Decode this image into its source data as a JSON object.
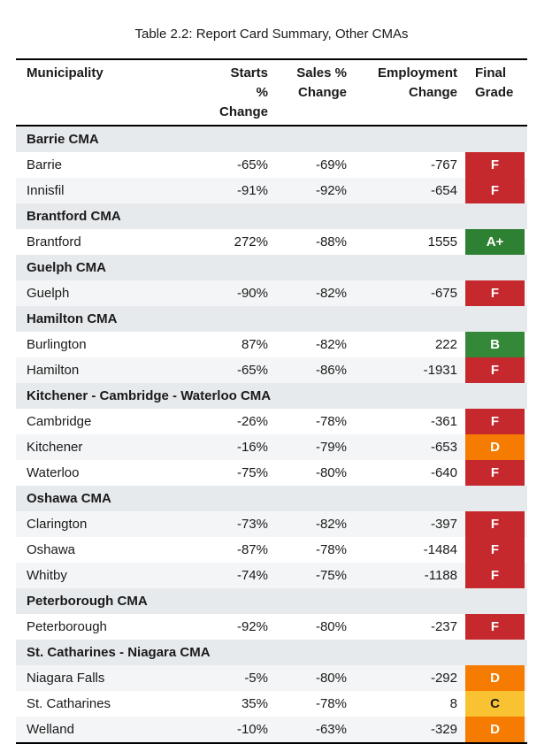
{
  "title": "Table 2.2: Report Card Summary, Other CMAs",
  "header": {
    "municipality": [
      "Municipality",
      ""
    ],
    "starts": [
      "Starts %",
      "Change"
    ],
    "sales": [
      "Sales %",
      "Change"
    ],
    "employment": [
      "Employment",
      "Change"
    ],
    "grade": [
      "Final",
      "Grade"
    ]
  },
  "colors": {
    "row_even": "#ffffff",
    "row_odd": "#f4f5f6",
    "section_bg": "#e7eaed",
    "text": "#1a1a1a",
    "border": "#000000"
  },
  "grade_styles": {
    "A+": {
      "bg": "#2e8033",
      "fg": "#ffffff"
    },
    "B": {
      "bg": "#348939",
      "fg": "#ffffff"
    },
    "C": {
      "bg": "#f9c232",
      "fg": "#1a1a1a"
    },
    "D": {
      "bg": "#f57c00",
      "fg": "#ffffff"
    },
    "F": {
      "bg": "#c5292d",
      "fg": "#ffffff"
    }
  },
  "sections": [
    {
      "name": "Barrie CMA",
      "rows": [
        {
          "municipality": "Barrie",
          "starts": "-65%",
          "sales": "-69%",
          "employment": "-767",
          "grade": "F"
        },
        {
          "municipality": "Innisfil",
          "starts": "-91%",
          "sales": "-92%",
          "employment": "-654",
          "grade": "F"
        }
      ]
    },
    {
      "name": "Brantford CMA",
      "rows": [
        {
          "municipality": "Brantford",
          "starts": "272%",
          "sales": "-88%",
          "employment": "1555",
          "grade": "A+"
        }
      ]
    },
    {
      "name": "Guelph CMA",
      "rows": [
        {
          "municipality": "Guelph",
          "starts": "-90%",
          "sales": "-82%",
          "employment": "-675",
          "grade": "F"
        }
      ]
    },
    {
      "name": "Hamilton CMA",
      "rows": [
        {
          "municipality": "Burlington",
          "starts": "87%",
          "sales": "-82%",
          "employment": "222",
          "grade": "B"
        },
        {
          "municipality": "Hamilton",
          "starts": "-65%",
          "sales": "-86%",
          "employment": "-1931",
          "grade": "F"
        }
      ]
    },
    {
      "name": "Kitchener - Cambridge - Waterloo CMA",
      "rows": [
        {
          "municipality": "Cambridge",
          "starts": "-26%",
          "sales": "-78%",
          "employment": "-361",
          "grade": "F"
        },
        {
          "municipality": "Kitchener",
          "starts": "-16%",
          "sales": "-79%",
          "employment": "-653",
          "grade": "D"
        },
        {
          "municipality": "Waterloo",
          "starts": "-75%",
          "sales": "-80%",
          "employment": "-640",
          "grade": "F"
        }
      ]
    },
    {
      "name": "Oshawa CMA",
      "rows": [
        {
          "municipality": "Clarington",
          "starts": "-73%",
          "sales": "-82%",
          "employment": "-397",
          "grade": "F"
        },
        {
          "municipality": "Oshawa",
          "starts": "-87%",
          "sales": "-78%",
          "employment": "-1484",
          "grade": "F"
        },
        {
          "municipality": "Whitby",
          "starts": "-74%",
          "sales": "-75%",
          "employment": "-1188",
          "grade": "F"
        }
      ]
    },
    {
      "name": "Peterborough CMA",
      "rows": [
        {
          "municipality": "Peterborough",
          "starts": "-92%",
          "sales": "-80%",
          "employment": "-237",
          "grade": "F"
        }
      ]
    },
    {
      "name": "St. Catharines - Niagara CMA",
      "rows": [
        {
          "municipality": "Niagara Falls",
          "starts": "-5%",
          "sales": "-80%",
          "employment": "-292",
          "grade": "D"
        },
        {
          "municipality": "St. Catharines",
          "starts": "35%",
          "sales": "-78%",
          "employment": "8",
          "grade": "C"
        },
        {
          "municipality": "Welland",
          "starts": "-10%",
          "sales": "-63%",
          "employment": "-329",
          "grade": "D"
        }
      ]
    }
  ]
}
